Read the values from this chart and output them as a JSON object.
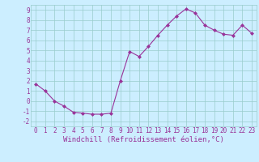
{
  "x": [
    0,
    1,
    2,
    3,
    4,
    5,
    6,
    7,
    8,
    9,
    10,
    11,
    12,
    13,
    14,
    15,
    16,
    17,
    18,
    19,
    20,
    21,
    22,
    23
  ],
  "y": [
    1.7,
    1.0,
    0.0,
    -0.5,
    -1.1,
    -1.2,
    -1.3,
    -1.3,
    -1.2,
    2.0,
    4.9,
    4.4,
    5.4,
    6.5,
    7.5,
    8.4,
    9.1,
    8.7,
    7.5,
    7.0,
    6.6,
    6.5,
    7.5,
    6.7
  ],
  "line_color": "#993399",
  "marker": "D",
  "markersize": 2.0,
  "linewidth": 0.8,
  "xlim": [
    -0.5,
    23.5
  ],
  "ylim": [
    -2.5,
    9.5
  ],
  "yticks": [
    -2,
    -1,
    0,
    1,
    2,
    3,
    4,
    5,
    6,
    7,
    8,
    9
  ],
  "xticks": [
    0,
    1,
    2,
    3,
    4,
    5,
    6,
    7,
    8,
    9,
    10,
    11,
    12,
    13,
    14,
    15,
    16,
    17,
    18,
    19,
    20,
    21,
    22,
    23
  ],
  "xlabel": "Windchill (Refroidissement éolien,°C)",
  "background_color": "#cceeff",
  "grid_color": "#99cccc",
  "tick_color": "#993399",
  "label_color": "#993399",
  "xlabel_fontsize": 6.5,
  "tick_fontsize": 5.5
}
